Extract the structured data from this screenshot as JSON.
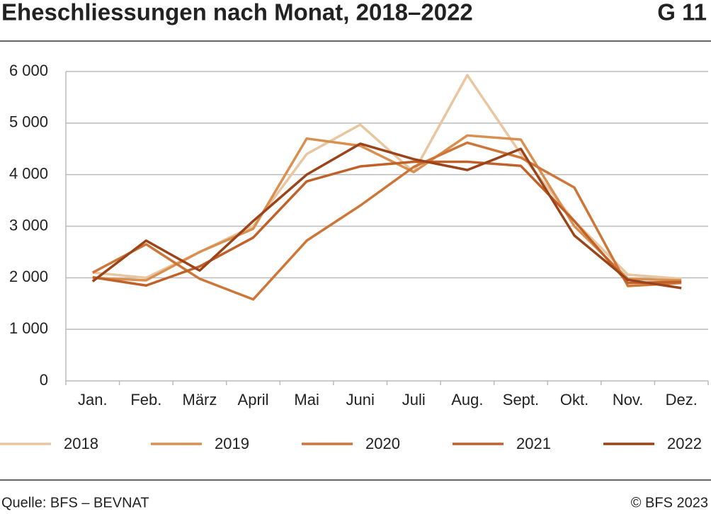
{
  "chart_data": {
    "type": "line",
    "title": "Eheschliessungen nach Monat, 2018–2022",
    "figure_number": "G 11",
    "source": "Quelle: BFS – BEVNAT",
    "copyright": "© BFS 2023",
    "categories": [
      "Jan.",
      "Feb.",
      "März",
      "April",
      "Mai",
      "Juni",
      "Juli",
      "Aug.",
      "Sept.",
      "Okt.",
      "Nov.",
      "Dez."
    ],
    "series": [
      {
        "name": "2018",
        "color": "#e8c6a1",
        "values": [
          2100,
          2000,
          2500,
          3000,
          4400,
          4970,
          4050,
          5930,
          4400,
          3100,
          2060,
          1980
        ]
      },
      {
        "name": "2019",
        "color": "#d98f4f",
        "values": [
          2000,
          1950,
          2500,
          2950,
          4700,
          4560,
          4050,
          4760,
          4680,
          3000,
          1980,
          1950
        ]
      },
      {
        "name": "2020",
        "color": "#cd7638",
        "values": [
          2100,
          2650,
          1980,
          1580,
          2720,
          3400,
          4150,
          4620,
          4330,
          3750,
          1840,
          1900
        ]
      },
      {
        "name": "2021",
        "color": "#c0612a",
        "values": [
          2010,
          1850,
          2220,
          2780,
          3870,
          4160,
          4250,
          4250,
          4170,
          3100,
          1900,
          1920
        ]
      },
      {
        "name": "2022",
        "color": "#9c4419",
        "values": [
          1930,
          2720,
          2140,
          3100,
          4000,
          4600,
          4300,
          4090,
          4500,
          2820,
          1960,
          1800
        ]
      }
    ],
    "ylim": [
      0,
      6000
    ],
    "yticks": [
      0,
      {
        "value": 1000,
        "label": "1 000"
      },
      {
        "value": 2000,
        "label": "2 000"
      },
      {
        "value": 3000,
        "label": "3 000"
      },
      {
        "value": 4000,
        "label": "4 000"
      },
      {
        "value": 5000,
        "label": "5 000"
      },
      {
        "value": 6000,
        "label": "6 000"
      }
    ],
    "grid": true
  }
}
